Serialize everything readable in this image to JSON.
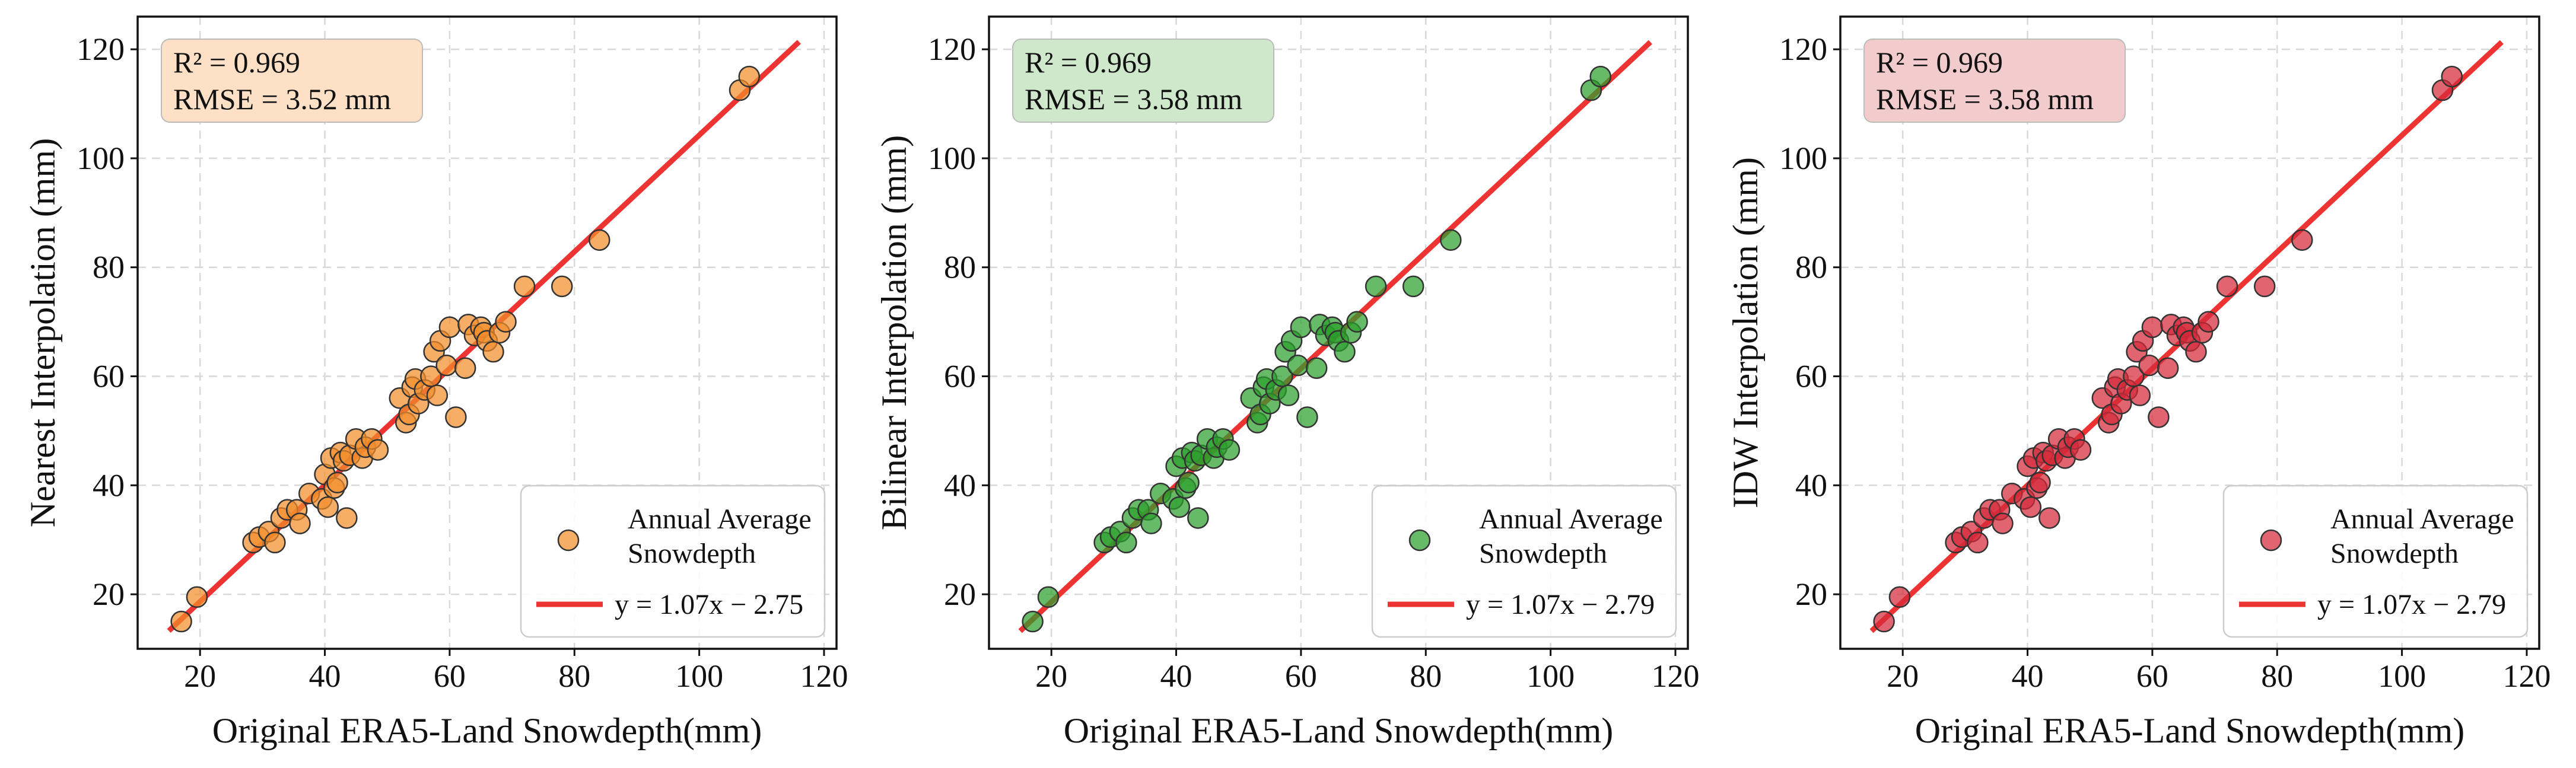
{
  "chart_data": [
    {
      "type": "scatter",
      "xlabel": "Original ERA5-Land Snowdepth(mm)",
      "ylabel": "Nearest Interpolation (mm)",
      "stats": [
        "R² = 0.969",
        "RMSE = 3.52 mm"
      ],
      "stats_color": "#fde0c5",
      "point_color": "#f28e2b",
      "legend": {
        "points_label": [
          "Annual Average",
          "Snowdepth"
        ],
        "line_label": "y = 1.07x − 2.75"
      },
      "fit": {
        "slope": 1.07,
        "intercept": -2.75,
        "x_range": [
          15,
          116
        ]
      },
      "xlim": [
        10,
        122
      ],
      "ylim": [
        10,
        126
      ],
      "xticks": [
        20,
        40,
        60,
        80,
        100,
        120
      ],
      "yticks": [
        20,
        40,
        60,
        80,
        100,
        120
      ],
      "points": [
        [
          17,
          15
        ],
        [
          19.5,
          19.5
        ],
        [
          28.5,
          29.5
        ],
        [
          29.5,
          30.5
        ],
        [
          31,
          31.5
        ],
        [
          32,
          29.5
        ],
        [
          33,
          34
        ],
        [
          34,
          35.5
        ],
        [
          35.5,
          35.5
        ],
        [
          36,
          33
        ],
        [
          37.5,
          38.5
        ],
        [
          39.5,
          37.5
        ],
        [
          40,
          42
        ],
        [
          40.5,
          36
        ],
        [
          41,
          45
        ],
        [
          41.5,
          39.5
        ],
        [
          42,
          40.5
        ],
        [
          42.5,
          46
        ],
        [
          43,
          44.5
        ],
        [
          43.5,
          34
        ],
        [
          44,
          45.5
        ],
        [
          45,
          48.5
        ],
        [
          46,
          45
        ],
        [
          46.5,
          47
        ],
        [
          47.5,
          48.5
        ],
        [
          48.5,
          46.5
        ],
        [
          52,
          56
        ],
        [
          53,
          51.5
        ],
        [
          53.5,
          53
        ],
        [
          54,
          58
        ],
        [
          54.5,
          59.5
        ],
        [
          55,
          55
        ],
        [
          56,
          57.5
        ],
        [
          57,
          60
        ],
        [
          57.5,
          64.5
        ],
        [
          58,
          56.5
        ],
        [
          58.5,
          66.5
        ],
        [
          59.5,
          62
        ],
        [
          60,
          69
        ],
        [
          61,
          52.5
        ],
        [
          62.5,
          61.5
        ],
        [
          63,
          69.5
        ],
        [
          64,
          67.5
        ],
        [
          65,
          69
        ],
        [
          65.5,
          68
        ],
        [
          66,
          66.5
        ],
        [
          67,
          64.5
        ],
        [
          68,
          68
        ],
        [
          69,
          70
        ],
        [
          72,
          76.5
        ],
        [
          78,
          76.5
        ],
        [
          84,
          85
        ],
        [
          106.5,
          112.5
        ],
        [
          108,
          115
        ]
      ]
    },
    {
      "type": "scatter",
      "xlabel": "Original ERA5-Land Snowdepth(mm)",
      "ylabel": "Bilinear Interpolation (mm)",
      "stats": [
        "R² = 0.969",
        "RMSE = 3.58 mm"
      ],
      "stats_color": "#cfe8cc",
      "point_color": "#2ca02c",
      "legend": {
        "points_label": [
          "Annual Average",
          "Snowdepth"
        ],
        "line_label": "y = 1.07x − 2.79"
      },
      "fit": {
        "slope": 1.07,
        "intercept": -2.79,
        "x_range": [
          15,
          116
        ]
      },
      "xlim": [
        10,
        122
      ],
      "ylim": [
        10,
        126
      ],
      "xticks": [
        20,
        40,
        60,
        80,
        100,
        120
      ],
      "yticks": [
        20,
        40,
        60,
        80,
        100,
        120
      ],
      "points": [
        [
          17,
          15
        ],
        [
          19.5,
          19.5
        ],
        [
          28.5,
          29.5
        ],
        [
          29.5,
          30.5
        ],
        [
          31,
          31.5
        ],
        [
          32,
          29.5
        ],
        [
          33,
          34
        ],
        [
          34,
          35.5
        ],
        [
          35.5,
          35.5
        ],
        [
          36,
          33
        ],
        [
          37.5,
          38.5
        ],
        [
          39.5,
          37.5
        ],
        [
          40,
          43.5
        ],
        [
          40.5,
          36
        ],
        [
          41,
          45
        ],
        [
          41.5,
          39.5
        ],
        [
          42,
          40.5
        ],
        [
          42.5,
          46
        ],
        [
          43,
          44.5
        ],
        [
          43.5,
          34
        ],
        [
          44,
          45.5
        ],
        [
          45,
          48.5
        ],
        [
          46,
          45
        ],
        [
          46.5,
          47
        ],
        [
          47.5,
          48.5
        ],
        [
          48.5,
          46.5
        ],
        [
          52,
          56
        ],
        [
          53,
          51.5
        ],
        [
          53.5,
          53
        ],
        [
          54,
          58
        ],
        [
          54.5,
          59.5
        ],
        [
          55,
          55
        ],
        [
          56,
          57.5
        ],
        [
          57,
          60
        ],
        [
          57.5,
          64.5
        ],
        [
          58,
          56.5
        ],
        [
          58.5,
          66.5
        ],
        [
          59.5,
          62
        ],
        [
          60,
          69
        ],
        [
          61,
          52.5
        ],
        [
          62.5,
          61.5
        ],
        [
          63,
          69.5
        ],
        [
          64,
          67.5
        ],
        [
          65,
          69
        ],
        [
          65.5,
          68
        ],
        [
          66,
          66.5
        ],
        [
          67,
          64.5
        ],
        [
          68,
          68
        ],
        [
          69,
          70
        ],
        [
          72,
          76.5
        ],
        [
          78,
          76.5
        ],
        [
          84,
          85
        ],
        [
          106.5,
          112.5
        ],
        [
          108,
          115
        ]
      ]
    },
    {
      "type": "scatter",
      "xlabel": "Original ERA5-Land Snowdepth(mm)",
      "ylabel": "IDW Interpolation (mm)",
      "stats": [
        "R² = 0.969",
        "RMSE = 3.58 mm"
      ],
      "stats_color": "#f2cccd",
      "point_color": "#d62a3a",
      "legend": {
        "points_label": [
          "Annual Average",
          "Snowdepth"
        ],
        "line_label": "y = 1.07x − 2.79"
      },
      "fit": {
        "slope": 1.07,
        "intercept": -2.79,
        "x_range": [
          15,
          116
        ]
      },
      "xlim": [
        10,
        122
      ],
      "ylim": [
        10,
        126
      ],
      "xticks": [
        20,
        40,
        60,
        80,
        100,
        120
      ],
      "yticks": [
        20,
        40,
        60,
        80,
        100,
        120
      ],
      "points": [
        [
          17,
          15
        ],
        [
          19.5,
          19.5
        ],
        [
          28.5,
          29.5
        ],
        [
          29.5,
          30.5
        ],
        [
          31,
          31.5
        ],
        [
          32,
          29.5
        ],
        [
          33,
          34
        ],
        [
          34,
          35.5
        ],
        [
          35.5,
          35.5
        ],
        [
          36,
          33
        ],
        [
          37.5,
          38.5
        ],
        [
          39.5,
          37.5
        ],
        [
          40,
          43.5
        ],
        [
          40.5,
          36
        ],
        [
          41,
          45
        ],
        [
          41.5,
          39.5
        ],
        [
          42,
          40.5
        ],
        [
          42.5,
          46
        ],
        [
          43,
          44.5
        ],
        [
          43.5,
          34
        ],
        [
          44,
          45.5
        ],
        [
          45,
          48.5
        ],
        [
          46,
          45
        ],
        [
          46.5,
          47
        ],
        [
          47.5,
          48.5
        ],
        [
          48.5,
          46.5
        ],
        [
          52,
          56
        ],
        [
          53,
          51.5
        ],
        [
          53.5,
          53
        ],
        [
          54,
          58
        ],
        [
          54.5,
          59.5
        ],
        [
          55,
          55
        ],
        [
          56,
          57.5
        ],
        [
          57,
          60
        ],
        [
          57.5,
          64.5
        ],
        [
          58,
          56.5
        ],
        [
          58.5,
          66.5
        ],
        [
          59.5,
          62
        ],
        [
          60,
          69
        ],
        [
          61,
          52.5
        ],
        [
          62.5,
          61.5
        ],
        [
          63,
          69.5
        ],
        [
          64,
          67.5
        ],
        [
          65,
          69
        ],
        [
          65.5,
          68
        ],
        [
          66,
          66.5
        ],
        [
          67,
          64.5
        ],
        [
          68,
          68
        ],
        [
          69,
          70
        ],
        [
          72,
          76.5
        ],
        [
          78,
          76.5
        ],
        [
          84,
          85
        ],
        [
          106.5,
          112.5
        ],
        [
          108,
          115
        ]
      ]
    }
  ]
}
